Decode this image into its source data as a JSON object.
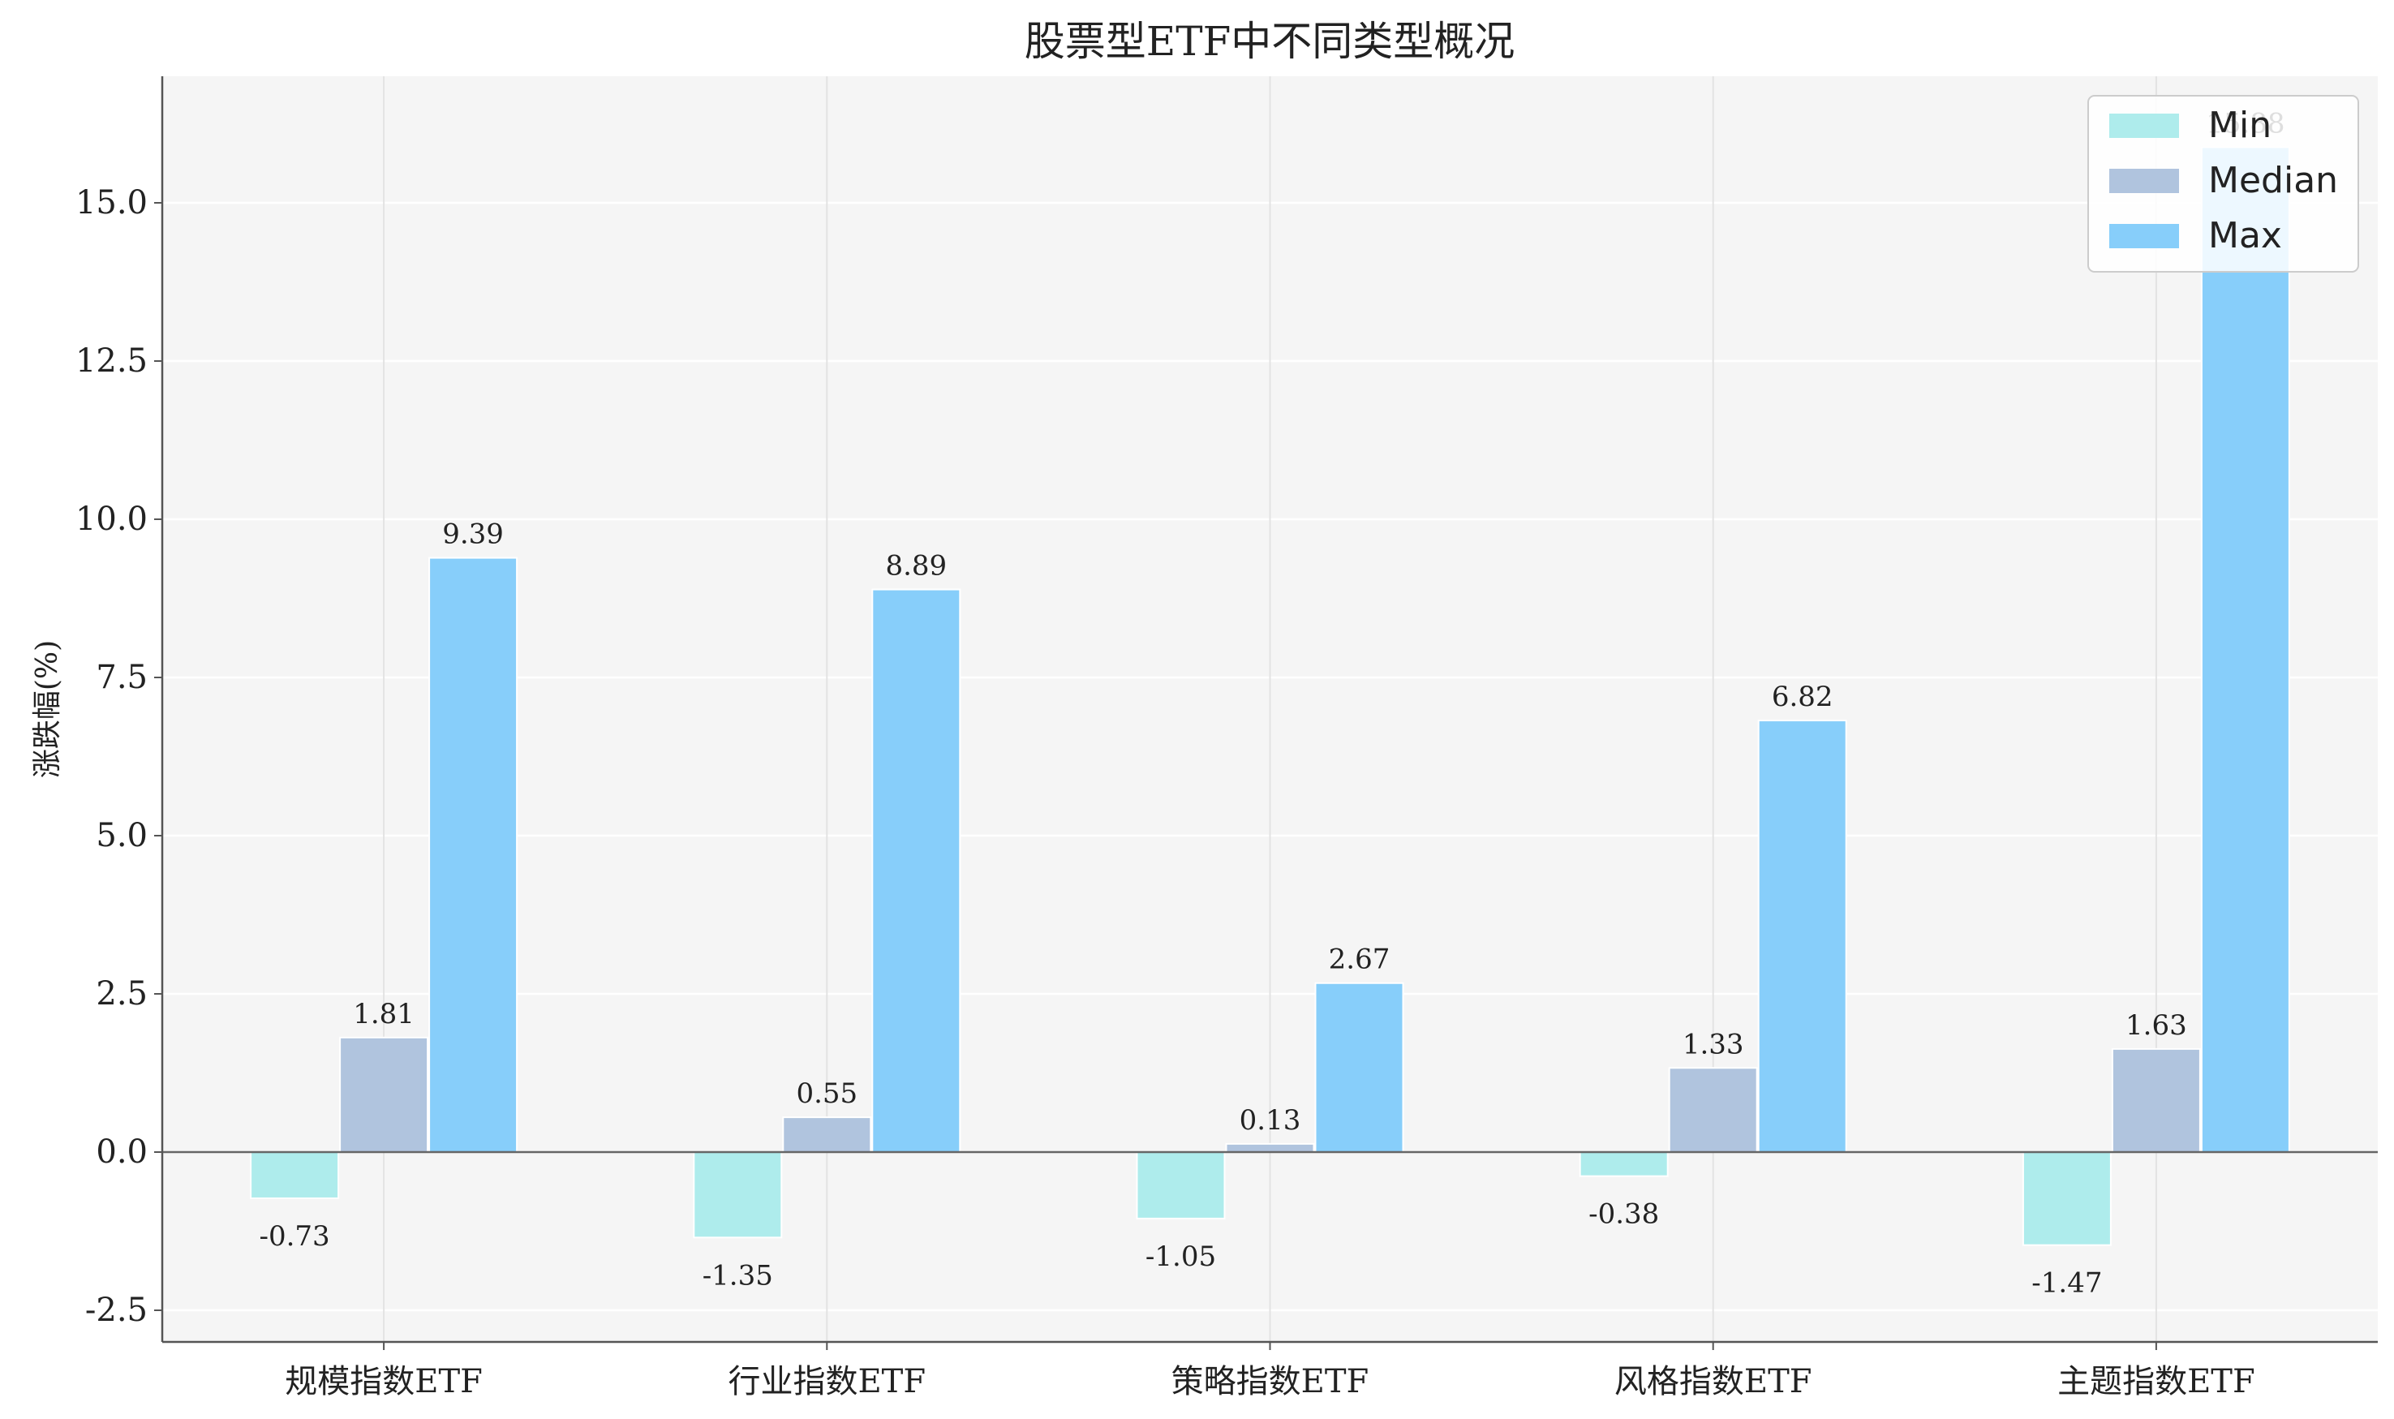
{
  "chart_data": {
    "type": "bar",
    "title": "股票型ETF中不同类型概况",
    "xlabel": "",
    "ylabel": "涨跌幅(%)",
    "categories": [
      "规模指数ETF",
      "行业指数ETF",
      "策略指数ETF",
      "风格指数ETF",
      "主题指数ETF"
    ],
    "series": [
      {
        "name": "Min",
        "color": "#aeecec",
        "values": [
          -0.73,
          -1.35,
          -1.05,
          -0.38,
          -1.47
        ],
        "labels": [
          "-0.73",
          "-1.35",
          "-1.05",
          "-0.38",
          "-1.47"
        ]
      },
      {
        "name": "Median",
        "color": "#b0c4de",
        "values": [
          1.81,
          0.55,
          0.13,
          1.33,
          1.63
        ],
        "labels": [
          "1.81",
          "0.55",
          "0.13",
          "1.33",
          "1.63"
        ]
      },
      {
        "name": "Max",
        "color": "#87cefa",
        "values": [
          9.39,
          8.89,
          2.67,
          6.82,
          15.88
        ],
        "labels": [
          "9.39",
          "8.89",
          "2.67",
          "6.82",
          "15.88"
        ]
      }
    ],
    "ylim": [
      -3.0,
      17.0
    ],
    "yticks": [
      -2.5,
      0.0,
      2.5,
      5.0,
      7.5,
      10.0,
      12.5,
      15.0
    ],
    "ytick_labels": [
      "-2.5",
      "0.0",
      "2.5",
      "5.0",
      "7.5",
      "10.0",
      "12.5",
      "15.0"
    ],
    "grid": true,
    "legend": "top-right"
  }
}
